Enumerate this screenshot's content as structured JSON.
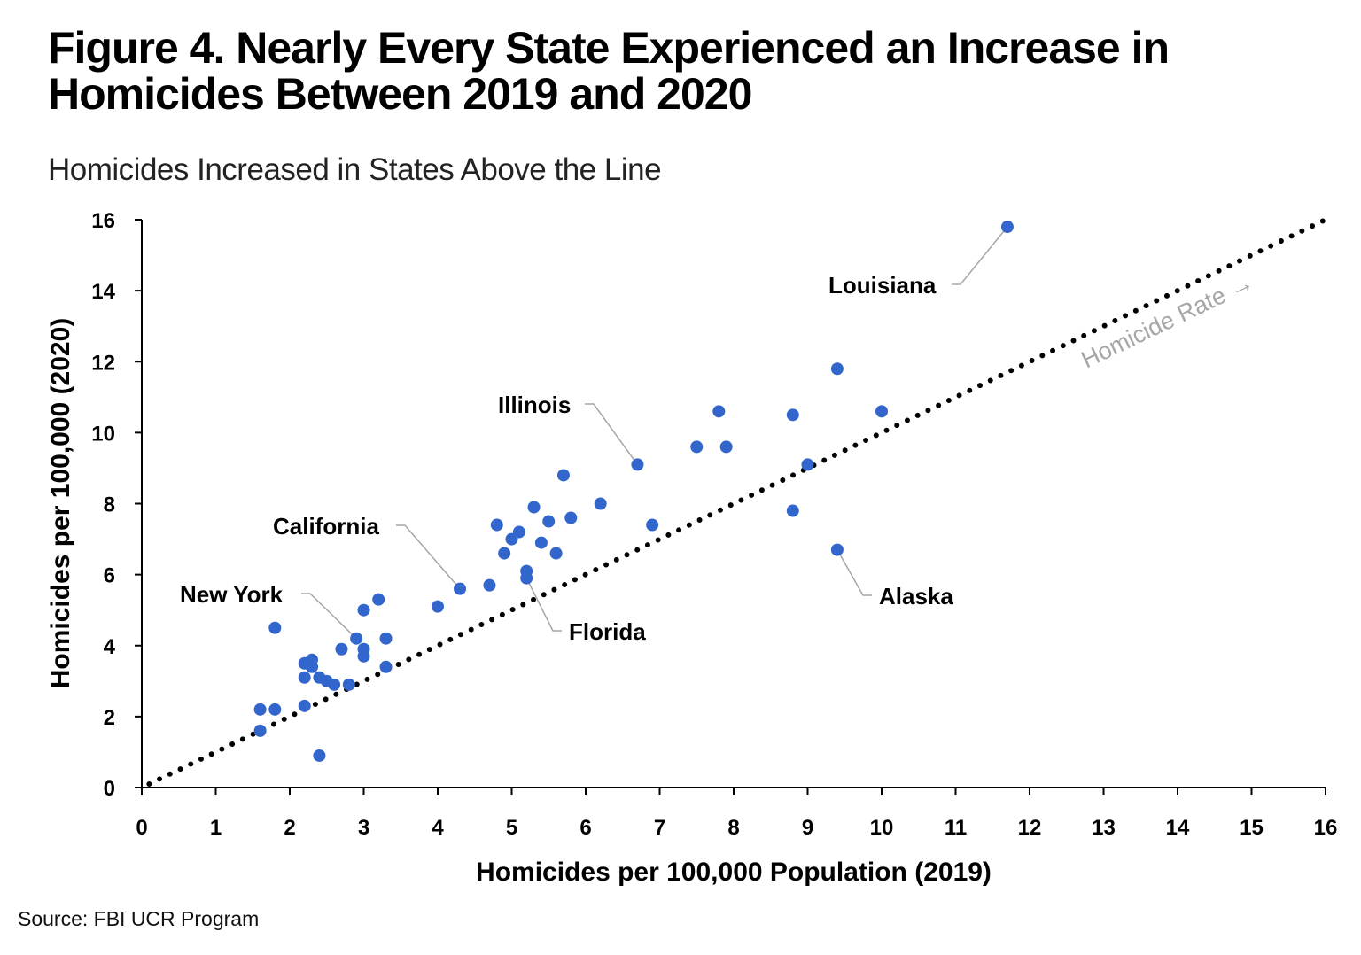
{
  "title": "Figure 4. Nearly Every State Experienced an Increase in Homicides Between 2019 and 2020",
  "subtitle": "Homicides Increased in States Above the Line",
  "source": "Source: FBI UCR Program",
  "chart_data": {
    "type": "scatter",
    "xlabel": "Homicides per 100,000 Population (2019)",
    "ylabel": "Homicides per 100,000 (2020)",
    "xlim": [
      0,
      16
    ],
    "ylim": [
      0,
      16
    ],
    "xticks": [
      0,
      1,
      2,
      3,
      4,
      5,
      6,
      7,
      8,
      9,
      10,
      11,
      12,
      13,
      14,
      15,
      16
    ],
    "yticks": [
      0,
      2,
      4,
      6,
      8,
      10,
      12,
      14,
      16
    ],
    "grid": false,
    "point_color": "#3366cc",
    "reference_line": {
      "label": "Homicide Rate →",
      "from": [
        0,
        0
      ],
      "to": [
        16,
        16
      ],
      "style": "dotted",
      "color": "#000000"
    },
    "points": [
      [
        1.6,
        2.2
      ],
      [
        1.6,
        1.6
      ],
      [
        1.8,
        2.2
      ],
      [
        1.8,
        4.5
      ],
      [
        2.2,
        3.5
      ],
      [
        2.3,
        3.6
      ],
      [
        2.3,
        3.4
      ],
      [
        2.2,
        3.1
      ],
      [
        2.4,
        3.1
      ],
      [
        2.5,
        3.0
      ],
      [
        2.6,
        2.9
      ],
      [
        2.8,
        2.9
      ],
      [
        2.2,
        2.3
      ],
      [
        2.4,
        0.9
      ],
      [
        2.7,
        3.9
      ],
      [
        2.9,
        4.2
      ],
      [
        3.0,
        3.9
      ],
      [
        3.0,
        3.7
      ],
      [
        3.0,
        5.0
      ],
      [
        3.2,
        5.3
      ],
      [
        3.3,
        4.2
      ],
      [
        3.3,
        3.4
      ],
      [
        4.0,
        5.1
      ],
      [
        4.3,
        5.6
      ],
      [
        4.7,
        5.7
      ],
      [
        4.8,
        7.4
      ],
      [
        4.9,
        6.6
      ],
      [
        5.0,
        7.0
      ],
      [
        5.1,
        7.2
      ],
      [
        5.2,
        6.1
      ],
      [
        5.2,
        5.9
      ],
      [
        5.3,
        7.9
      ],
      [
        5.4,
        6.9
      ],
      [
        5.5,
        7.5
      ],
      [
        5.6,
        6.6
      ],
      [
        5.7,
        8.8
      ],
      [
        5.8,
        7.6
      ],
      [
        6.2,
        8.0
      ],
      [
        6.7,
        9.1
      ],
      [
        6.9,
        7.4
      ],
      [
        7.5,
        9.6
      ],
      [
        7.8,
        10.6
      ],
      [
        7.9,
        9.6
      ],
      [
        8.8,
        10.5
      ],
      [
        8.8,
        7.8
      ],
      [
        9.0,
        9.1
      ],
      [
        9.4,
        11.8
      ],
      [
        9.4,
        6.7
      ],
      [
        10.0,
        10.6
      ],
      [
        11.7,
        15.8
      ]
    ],
    "annotations": [
      {
        "label": "Louisiana",
        "x": 11.7,
        "y": 15.8
      },
      {
        "label": "Illinois",
        "x": 6.7,
        "y": 9.1
      },
      {
        "label": "California",
        "x": 4.3,
        "y": 5.6
      },
      {
        "label": "New York",
        "x": 2.9,
        "y": 4.2
      },
      {
        "label": "Florida",
        "x": 5.2,
        "y": 5.9
      },
      {
        "label": "Alaska",
        "x": 9.4,
        "y": 6.7
      }
    ]
  }
}
